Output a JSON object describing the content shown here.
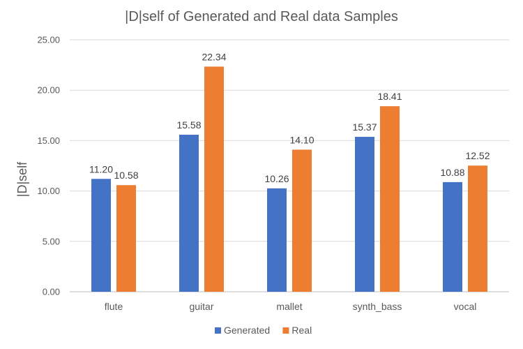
{
  "chart_data": {
    "type": "bar",
    "title": "|D|self of Generated and Real data Samples",
    "xlabel": "",
    "ylabel": "|D|self",
    "categories": [
      "flute",
      "guitar",
      "mallet",
      "synth_bass",
      "vocal"
    ],
    "series": [
      {
        "name": "Generated",
        "color": "#4472C4",
        "values": [
          11.2,
          15.58,
          10.26,
          15.37,
          10.88
        ]
      },
      {
        "name": "Real",
        "color": "#ED7D31",
        "values": [
          10.58,
          22.34,
          14.1,
          18.41,
          12.52
        ]
      }
    ],
    "ylim": [
      0,
      25
    ],
    "yticks": [
      "0.00",
      "5.00",
      "10.00",
      "15.00",
      "20.00",
      "25.00"
    ],
    "grid": true,
    "legend": "bottom"
  }
}
